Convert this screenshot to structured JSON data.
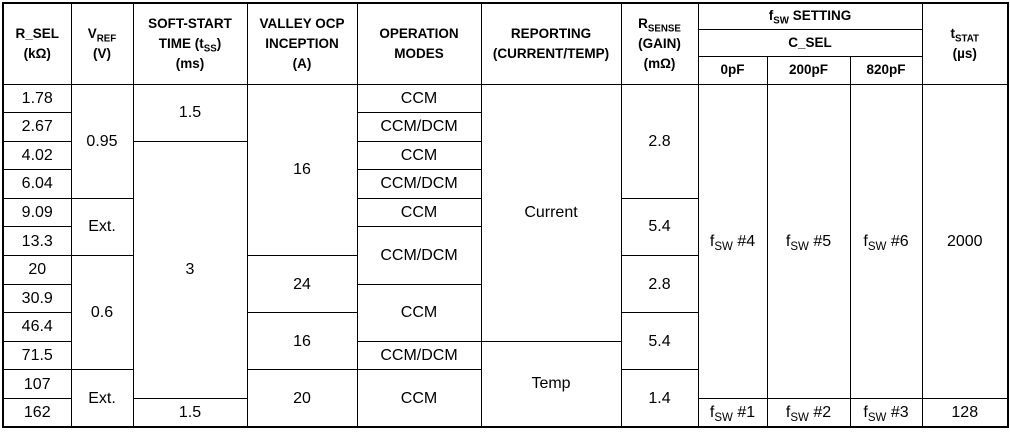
{
  "table": {
    "header": {
      "r_sel": "R_SEL\n(kΩ)",
      "v_ref": "V_{REF}\n(V)",
      "soft_start": "SOFT-START\nTIME (t_{SS})\n(ms)",
      "valley_ocp": "VALLEY OCP\nINCEPTION\n(A)",
      "operation_modes": "OPERATION\nMODES",
      "reporting": "REPORTING\n(CURRENT/TEMP)",
      "r_sense": "R_{SENSE}\n(GAIN)\n(mΩ)",
      "fsw_setting": "f_{SW} SETTING",
      "c_sel": "C_SEL",
      "c_sel_options": [
        "0pF",
        "200pF",
        "820pF"
      ],
      "t_stat": "t_{STAT}\n(µs)"
    },
    "r_sel_values": [
      "1.78",
      "2.67",
      "4.02",
      "6.04",
      "9.09",
      "13.3",
      "20",
      "30.9",
      "46.4",
      "71.5",
      "107",
      "162"
    ],
    "v_ref_cells": [
      "0.95",
      "Ext.",
      "0.6",
      "Ext."
    ],
    "soft_start_cells": [
      "1.5",
      "3",
      "1.5"
    ],
    "valley_ocp_cells": [
      "16",
      "24",
      "16",
      "20"
    ],
    "mode_cells": [
      "CCM",
      "CCM/DCM",
      "CCM",
      "CCM/DCM",
      "CCM",
      "CCM/DCM",
      "CCM",
      "CCM/DCM",
      "CCM"
    ],
    "reporting_cells": [
      "Current",
      "Temp"
    ],
    "r_sense_cells": [
      "2.8",
      "5.4",
      "2.8",
      "5.4",
      "1.4"
    ],
    "fsw_0pf_cells": [
      "f_{SW} #4",
      "f_{SW} #1"
    ],
    "fsw_200pf_cells": [
      "f_{SW} #5",
      "f_{SW} #2"
    ],
    "fsw_820pf_cells": [
      "f_{SW} #6",
      "f_{SW} #3"
    ],
    "t_stat_cells": [
      "2000",
      "128"
    ]
  }
}
